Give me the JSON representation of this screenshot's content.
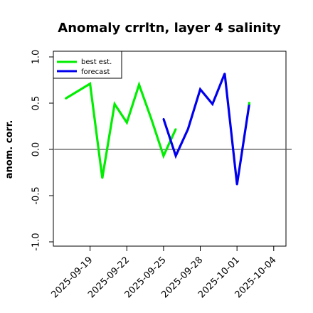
{
  "chart_data": {
    "type": "line",
    "title": "Anomaly crrltn, layer 4 salinity",
    "ylabel": "anom. corr.",
    "xlabel": "",
    "ylim": [
      -1.0,
      1.0
    ],
    "yticks": [
      -1.0,
      -0.5,
      0.0,
      0.5,
      1.0
    ],
    "ytick_labels": [
      "-1.0",
      "-0.5",
      "0.0",
      "0.5",
      "1.0"
    ],
    "x_dates": [
      "2025-09-17",
      "2025-09-18",
      "2025-09-19",
      "2025-09-20",
      "2025-09-21",
      "2025-09-22",
      "2025-09-23",
      "2025-09-24",
      "2025-09-25",
      "2025-09-26",
      "2025-09-27",
      "2025-09-28",
      "2025-09-29",
      "2025-09-30",
      "2025-10-01",
      "2025-10-02",
      "2025-10-03",
      "2025-10-04",
      "2025-10-05"
    ],
    "xlim": [
      "2025-09-16",
      "2025-10-05"
    ],
    "xticks": [
      {
        "date": "2025-09-19",
        "label": "2025-09-19",
        "color": "#000000"
      },
      {
        "date": "2025-09-22",
        "label": "2025-09-22",
        "color": "#000000"
      },
      {
        "date": "2025-09-25",
        "label": "2025-09-25",
        "color": "#2e8b1e"
      },
      {
        "date": "2025-09-28",
        "label": "2025-09-28",
        "color": "#000000"
      },
      {
        "date": "2025-10-01",
        "label": "2025-10-01",
        "color": "#000000"
      },
      {
        "date": "2025-10-04",
        "label": "2025-10-04",
        "color": "#000000"
      }
    ],
    "zero_line": 0.0,
    "series": [
      {
        "name": "best est.",
        "color": "#00ee00",
        "segment": "pre-forecast",
        "x": [
          "2025-09-17",
          "2025-09-18",
          "2025-09-19",
          "2025-09-20",
          "2025-09-21",
          "2025-09-22",
          "2025-09-23",
          "2025-09-24",
          "2025-09-25",
          "2025-09-26"
        ],
        "values": [
          0.55,
          0.63,
          0.71,
          -0.31,
          0.49,
          0.29,
          0.7,
          0.33,
          -0.07,
          0.22
        ]
      },
      {
        "name": "forecast",
        "color": "#0000ee",
        "segment": "forecast",
        "x": [
          "2025-09-25",
          "2025-09-26",
          "2025-09-27",
          "2025-09-28",
          "2025-09-29",
          "2025-09-30",
          "2025-10-01",
          "2025-10-02"
        ],
        "values": [
          0.33,
          -0.07,
          0.22,
          0.65,
          0.49,
          0.82,
          -0.38,
          0.49
        ]
      },
      {
        "name": "best est.",
        "color": "#00ee00",
        "segment": "tail",
        "x": [
          "2025-10-02"
        ],
        "values": [
          0.49
        ]
      }
    ],
    "legend": {
      "placement": "top-left",
      "entries": [
        {
          "label": "best est.",
          "color": "#00ee00"
        },
        {
          "label": "forecast",
          "color": "#0000ee"
        }
      ]
    },
    "grid": false
  }
}
